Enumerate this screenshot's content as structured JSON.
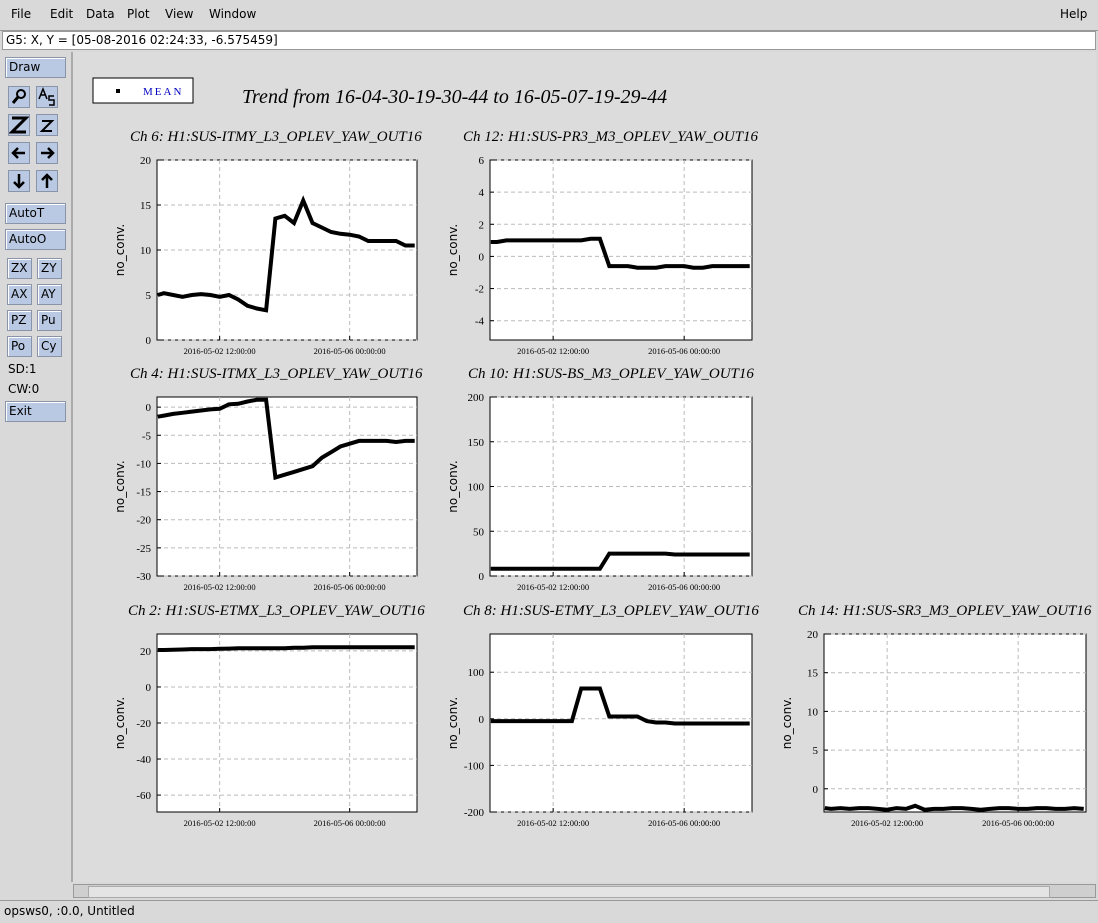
{
  "menu": [
    "File",
    "Edit",
    "Data",
    "Plot",
    "View",
    "Window"
  ],
  "help": "Help",
  "status": "G5: X, Y = [05-08-2016 02:24:33, -6.575459]",
  "toolbar": {
    "draw": "Draw",
    "auto_t": "AutoT",
    "auto_o": "AutoO",
    "zx": "ZX",
    "zy": "ZY",
    "ax": "AX",
    "ay": "AY",
    "pz": "PZ",
    "pu": "Pu",
    "po": "Po",
    "cy": "Cy",
    "sd": "SD:1",
    "cw": "CW:0",
    "exit": "Exit"
  },
  "footer": "opsws0, :0.0, Untitled",
  "legend": "MEAN",
  "title": "Trend from 16-04-30-19-30-44 to 16-05-07-19-29-44",
  "chart_data": [
    {
      "type": "line",
      "title": "Ch 6: H1:SUS-ITMY_L3_OPLEV_YAW_OUT16",
      "ylabel": "no_conv.",
      "x": [
        "2016-04-30 20:00:00",
        "2016-05-01 00:00:00",
        "2016-05-01 06:00:00",
        "2016-05-01 12:00:00",
        "2016-05-01 18:00:00",
        "2016-05-02 00:00:00",
        "2016-05-02 06:00:00",
        "2016-05-02 12:00:00",
        "2016-05-02 18:00:00",
        "2016-05-03 00:00:00",
        "2016-05-03 06:00:00",
        "2016-05-03 12:00:00",
        "2016-05-03 18:00:00",
        "2016-05-04 00:00:00",
        "2016-05-04 06:00:00",
        "2016-05-04 12:00:00",
        "2016-05-04 18:00:00",
        "2016-05-05 00:00:00",
        "2016-05-05 06:00:00",
        "2016-05-05 12:00:00",
        "2016-05-05 18:00:00",
        "2016-05-06 00:00:00",
        "2016-05-06 06:00:00",
        "2016-05-06 12:00:00",
        "2016-05-06 18:00:00",
        "2016-05-07 00:00:00",
        "2016-05-07 06:00:00",
        "2016-05-07 12:00:00",
        "2016-05-07 18:00:00"
      ],
      "series": [
        {
          "color": "#000000",
          "values": [
            5,
            5.2,
            5,
            4.8,
            5,
            5.1,
            5,
            4.8,
            5,
            4.5,
            3.8,
            3.5,
            3.3,
            13.5,
            13.8,
            13,
            15.5,
            13,
            12.5,
            12,
            11.8,
            11.7,
            11.5,
            11,
            11,
            11,
            11,
            10.5,
            10.5
          ]
        }
      ],
      "xlim": [
        "2016-04-30 19:30:44",
        "2016-05-07 19:29:44"
      ],
      "xticks": [
        "2016-05-02 12:00:00",
        "2016-05-06 00:00:00"
      ],
      "ylim": [
        0,
        20
      ],
      "yticks": [
        0,
        5,
        10,
        15,
        20
      ],
      "grid": true
    },
    {
      "type": "line",
      "title": "Ch 12: H1:SUS-PR3_M3_OPLEV_YAW_OUT16",
      "ylabel": "no_conv.",
      "x": [
        "2016-04-30 20:00:00",
        "2016-05-01 00:00:00",
        "2016-05-01 06:00:00",
        "2016-05-01 12:00:00",
        "2016-05-01 18:00:00",
        "2016-05-02 00:00:00",
        "2016-05-02 06:00:00",
        "2016-05-02 12:00:00",
        "2016-05-02 18:00:00",
        "2016-05-03 00:00:00",
        "2016-05-03 06:00:00",
        "2016-05-03 12:00:00",
        "2016-05-03 18:00:00",
        "2016-05-04 00:00:00",
        "2016-05-04 06:00:00",
        "2016-05-04 12:00:00",
        "2016-05-04 18:00:00",
        "2016-05-05 00:00:00",
        "2016-05-05 06:00:00",
        "2016-05-05 12:00:00",
        "2016-05-05 18:00:00",
        "2016-05-06 00:00:00",
        "2016-05-06 06:00:00",
        "2016-05-06 12:00:00",
        "2016-05-06 18:00:00",
        "2016-05-07 00:00:00",
        "2016-05-07 06:00:00",
        "2016-05-07 12:00:00",
        "2016-05-07 18:00:00"
      ],
      "series": [
        {
          "color": "#000000",
          "values": [
            0.9,
            0.9,
            1,
            1,
            1,
            1,
            1,
            1,
            1,
            1,
            1,
            1.1,
            1.1,
            -0.6,
            -0.6,
            -0.6,
            -0.7,
            -0.7,
            -0.7,
            -0.6,
            -0.6,
            -0.6,
            -0.7,
            -0.7,
            -0.6,
            -0.6,
            -0.6,
            -0.6,
            -0.6
          ]
        }
      ],
      "xlim": [
        "2016-04-30 19:30:44",
        "2016-05-07 19:29:44"
      ],
      "xticks": [
        "2016-05-02 12:00:00",
        "2016-05-06 00:00:00"
      ],
      "ylim": [
        -5.2,
        6
      ],
      "yticks": [
        -4,
        -2,
        0,
        2,
        4,
        6
      ],
      "grid": true
    },
    {
      "type": "line",
      "title": "Ch 4: H1:SUS-ITMX_L3_OPLEV_YAW_OUT16",
      "ylabel": "no_conv.",
      "x": [
        "2016-04-30 20:00:00",
        "2016-05-01 00:00:00",
        "2016-05-01 06:00:00",
        "2016-05-01 12:00:00",
        "2016-05-01 18:00:00",
        "2016-05-02 00:00:00",
        "2016-05-02 06:00:00",
        "2016-05-02 12:00:00",
        "2016-05-02 18:00:00",
        "2016-05-03 00:00:00",
        "2016-05-03 06:00:00",
        "2016-05-03 12:00:00",
        "2016-05-03 18:00:00",
        "2016-05-04 00:00:00",
        "2016-05-04 06:00:00",
        "2016-05-04 12:00:00",
        "2016-05-04 18:00:00",
        "2016-05-05 00:00:00",
        "2016-05-05 06:00:00",
        "2016-05-05 12:00:00",
        "2016-05-05 18:00:00",
        "2016-05-06 00:00:00",
        "2016-05-06 06:00:00",
        "2016-05-06 12:00:00",
        "2016-05-06 18:00:00",
        "2016-05-07 00:00:00",
        "2016-05-07 06:00:00",
        "2016-05-07 12:00:00",
        "2016-05-07 18:00:00"
      ],
      "series": [
        {
          "color": "#000000",
          "values": [
            -1.7,
            -1.5,
            -1.2,
            -1,
            -0.8,
            -0.6,
            -0.4,
            -0.3,
            0.5,
            0.6,
            1,
            1.3,
            1.3,
            -12.5,
            -12,
            -11.5,
            -11,
            -10.5,
            -9,
            -8,
            -7,
            -6.5,
            -6,
            -6,
            -6,
            -6,
            -6.2,
            -6,
            -6
          ]
        }
      ],
      "xlim": [
        "2016-04-30 19:30:44",
        "2016-05-07 19:29:44"
      ],
      "xticks": [
        "2016-05-02 12:00:00",
        "2016-05-06 00:00:00"
      ],
      "ylim": [
        -30,
        1.8
      ],
      "yticks": [
        0,
        -5,
        -10,
        -15,
        -20,
        -25,
        -30
      ],
      "grid": true
    },
    {
      "type": "line",
      "title": "Ch 10: H1:SUS-BS_M3_OPLEV_YAW_OUT16",
      "ylabel": "no_conv.",
      "x": [
        "2016-04-30 20:00:00",
        "2016-05-01 00:00:00",
        "2016-05-01 06:00:00",
        "2016-05-01 12:00:00",
        "2016-05-01 18:00:00",
        "2016-05-02 00:00:00",
        "2016-05-02 06:00:00",
        "2016-05-02 12:00:00",
        "2016-05-02 18:00:00",
        "2016-05-03 00:00:00",
        "2016-05-03 06:00:00",
        "2016-05-03 12:00:00",
        "2016-05-03 18:00:00",
        "2016-05-04 00:00:00",
        "2016-05-04 06:00:00",
        "2016-05-04 12:00:00",
        "2016-05-04 18:00:00",
        "2016-05-05 00:00:00",
        "2016-05-05 06:00:00",
        "2016-05-05 12:00:00",
        "2016-05-05 18:00:00",
        "2016-05-06 00:00:00",
        "2016-05-06 06:00:00",
        "2016-05-06 12:00:00",
        "2016-05-06 18:00:00",
        "2016-05-07 00:00:00",
        "2016-05-07 06:00:00",
        "2016-05-07 12:00:00",
        "2016-05-07 18:00:00"
      ],
      "series": [
        {
          "color": "#000000",
          "values": [
            8,
            8,
            8,
            8,
            8,
            8,
            8,
            8,
            8,
            8,
            8,
            8,
            8,
            25,
            25,
            25,
            25,
            25,
            25,
            25,
            24,
            24,
            24,
            24,
            24,
            24,
            24,
            24,
            24
          ]
        }
      ],
      "xlim": [
        "2016-04-30 19:30:44",
        "2016-05-07 19:29:44"
      ],
      "xticks": [
        "2016-05-02 12:00:00",
        "2016-05-06 00:00:00"
      ],
      "ylim": [
        0,
        200
      ],
      "yticks": [
        0,
        50,
        100,
        150,
        200
      ],
      "grid": true
    },
    {
      "type": "line",
      "title": "Ch 2: H1:SUS-ETMX_L3_OPLEV_YAW_OUT16",
      "ylabel": "no_conv.",
      "x": [
        "2016-04-30 20:00:00",
        "2016-05-01 00:00:00",
        "2016-05-01 06:00:00",
        "2016-05-01 12:00:00",
        "2016-05-01 18:00:00",
        "2016-05-02 00:00:00",
        "2016-05-02 06:00:00",
        "2016-05-02 12:00:00",
        "2016-05-02 18:00:00",
        "2016-05-03 00:00:00",
        "2016-05-03 06:00:00",
        "2016-05-03 12:00:00",
        "2016-05-03 18:00:00",
        "2016-05-04 00:00:00",
        "2016-05-04 06:00:00",
        "2016-05-04 12:00:00",
        "2016-05-04 18:00:00",
        "2016-05-05 00:00:00",
        "2016-05-05 06:00:00",
        "2016-05-05 12:00:00",
        "2016-05-05 18:00:00",
        "2016-05-06 00:00:00",
        "2016-05-06 06:00:00",
        "2016-05-06 12:00:00",
        "2016-05-06 18:00:00",
        "2016-05-07 00:00:00",
        "2016-05-07 06:00:00",
        "2016-05-07 12:00:00",
        "2016-05-07 18:00:00"
      ],
      "series": [
        {
          "color": "#000000",
          "values": [
            20.5,
            20.5,
            20.7,
            20.8,
            21,
            21,
            21,
            21.2,
            21.3,
            21.5,
            21.5,
            21.5,
            21.5,
            21.5,
            21.5,
            21.8,
            21.8,
            22,
            22,
            22,
            22,
            22,
            22,
            22,
            22,
            22,
            22,
            22,
            22
          ]
        }
      ],
      "xlim": [
        "2016-04-30 19:30:44",
        "2016-05-07 19:29:44"
      ],
      "xticks": [
        "2016-05-02 12:00:00",
        "2016-05-06 00:00:00"
      ],
      "ylim": [
        -69.4,
        29.4
      ],
      "yticks": [
        20,
        0,
        -20,
        -40,
        -60
      ],
      "grid": true
    },
    {
      "type": "line",
      "title": "Ch 8: H1:SUS-ETMY_L3_OPLEV_YAW_OUT16",
      "ylabel": "no_conv.",
      "x": [
        "2016-04-30 20:00:00",
        "2016-05-01 00:00:00",
        "2016-05-01 06:00:00",
        "2016-05-01 12:00:00",
        "2016-05-01 18:00:00",
        "2016-05-02 00:00:00",
        "2016-05-02 06:00:00",
        "2016-05-02 12:00:00",
        "2016-05-02 18:00:00",
        "2016-05-03 00:00:00",
        "2016-05-03 06:00:00",
        "2016-05-03 12:00:00",
        "2016-05-03 18:00:00",
        "2016-05-04 00:00:00",
        "2016-05-04 06:00:00",
        "2016-05-04 12:00:00",
        "2016-05-04 18:00:00",
        "2016-05-05 00:00:00",
        "2016-05-05 06:00:00",
        "2016-05-05 12:00:00",
        "2016-05-05 18:00:00",
        "2016-05-06 00:00:00",
        "2016-05-06 06:00:00",
        "2016-05-06 12:00:00",
        "2016-05-06 18:00:00",
        "2016-05-07 00:00:00",
        "2016-05-07 06:00:00",
        "2016-05-07 12:00:00",
        "2016-05-07 18:00:00"
      ],
      "series": [
        {
          "color": "#000000",
          "values": [
            -5,
            -5,
            -5,
            -5,
            -5,
            -5,
            -5,
            -5,
            -5,
            -5,
            65,
            65,
            65,
            5,
            5,
            5,
            5,
            -5,
            -8,
            -8,
            -10,
            -10,
            -10,
            -10,
            -10,
            -10,
            -10,
            -10,
            -10
          ]
        }
      ],
      "xlim": [
        "2016-04-30 19:30:44",
        "2016-05-07 19:29:44"
      ],
      "xticks": [
        "2016-05-02 12:00:00",
        "2016-05-06 00:00:00"
      ],
      "ylim": [
        -200,
        182
      ],
      "yticks": [
        -200,
        -100,
        0,
        100
      ],
      "grid": true
    },
    {
      "type": "line",
      "title": "Ch 14: H1:SUS-SR3_M3_OPLEV_YAW_OUT16",
      "ylabel": "no_conv.",
      "x": [
        "2016-04-30 20:00:00",
        "2016-05-01 00:00:00",
        "2016-05-01 06:00:00",
        "2016-05-01 12:00:00",
        "2016-05-01 18:00:00",
        "2016-05-02 00:00:00",
        "2016-05-02 06:00:00",
        "2016-05-02 12:00:00",
        "2016-05-02 18:00:00",
        "2016-05-03 00:00:00",
        "2016-05-03 06:00:00",
        "2016-05-03 12:00:00",
        "2016-05-03 18:00:00",
        "2016-05-04 00:00:00",
        "2016-05-04 06:00:00",
        "2016-05-04 12:00:00",
        "2016-05-04 18:00:00",
        "2016-05-05 00:00:00",
        "2016-05-05 06:00:00",
        "2016-05-05 12:00:00",
        "2016-05-05 18:00:00",
        "2016-05-06 00:00:00",
        "2016-05-06 06:00:00",
        "2016-05-06 12:00:00",
        "2016-05-06 18:00:00",
        "2016-05-07 00:00:00",
        "2016-05-07 06:00:00",
        "2016-05-07 12:00:00",
        "2016-05-07 18:00:00"
      ],
      "series": [
        {
          "color": "#000000",
          "values": [
            -2.5,
            -2.6,
            -2.5,
            -2.6,
            -2.5,
            -2.5,
            -2.6,
            -2.7,
            -2.5,
            -2.6,
            -2.2,
            -2.7,
            -2.6,
            -2.6,
            -2.5,
            -2.5,
            -2.6,
            -2.7,
            -2.6,
            -2.5,
            -2.5,
            -2.6,
            -2.6,
            -2.5,
            -2.5,
            -2.6,
            -2.6,
            -2.5,
            -2.6
          ]
        }
      ],
      "xlim": [
        "2016-04-30 19:30:44",
        "2016-05-07 19:29:44"
      ],
      "xticks": [
        "2016-05-02 12:00:00",
        "2016-05-06 00:00:00"
      ],
      "ylim": [
        -3,
        20
      ],
      "yticks": [
        0,
        5,
        10,
        15,
        20
      ],
      "grid": true
    }
  ]
}
